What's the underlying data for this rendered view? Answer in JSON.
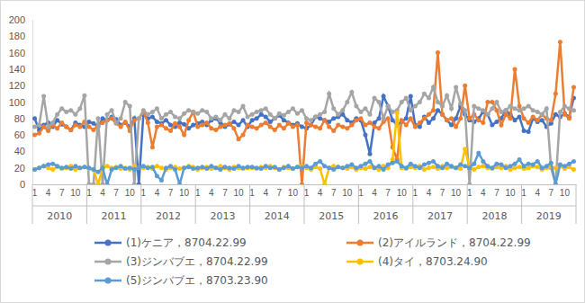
{
  "chart_data": {
    "type": "line",
    "marker": "circle",
    "grid": false,
    "legend": "bottom",
    "ylim": [
      0,
      200
    ],
    "yticks": [
      0,
      20,
      40,
      60,
      80,
      100,
      120,
      140,
      160,
      180,
      200
    ],
    "categories": [
      "1",
      null,
      null,
      "4",
      null,
      null,
      "7",
      null,
      null,
      "10",
      null,
      null,
      "1",
      null,
      null,
      "4",
      null,
      null,
      "7",
      null,
      null,
      "10",
      null,
      null,
      "1",
      null,
      null,
      "4",
      null,
      null,
      "7",
      null,
      null,
      "10",
      null,
      null,
      "1",
      null,
      null,
      "4",
      null,
      null,
      "7",
      null,
      null,
      "10",
      null,
      null,
      "1",
      null,
      null,
      "4",
      null,
      null,
      "7",
      null,
      null,
      "10",
      null,
      null,
      "1",
      null,
      null,
      "4",
      null,
      null,
      "7",
      null,
      null,
      "10",
      null,
      null,
      "1",
      null,
      null,
      "4",
      null,
      null,
      "7",
      null,
      null,
      "10",
      null,
      null,
      "1",
      null,
      null,
      "4",
      null,
      null,
      "7",
      null,
      null,
      "10",
      null,
      null,
      "1",
      null,
      null,
      "4",
      null,
      null,
      "7",
      null,
      null,
      "10",
      null,
      null,
      "1",
      null,
      null,
      "4",
      null,
      null,
      "7",
      null,
      null,
      "10",
      null,
      null
    ],
    "category_groups": [
      "2010",
      "2011",
      "2012",
      "2013",
      "2014",
      "2015",
      "2016",
      "2017",
      "2018",
      "2019"
    ],
    "series": [
      {
        "name": "(1)ケニア，8704.22.99",
        "color": "#4472c4",
        "values": [
          80,
          66,
          72,
          75,
          70,
          78,
          73,
          70,
          66,
          75,
          72,
          70,
          76,
          74,
          70,
          80,
          78,
          82,
          79,
          72,
          75,
          70,
          80,
          0,
          85,
          80,
          82,
          76,
          74,
          78,
          72,
          70,
          75,
          73,
          68,
          72,
          74,
          76,
          72,
          78,
          80,
          75,
          70,
          73,
          76,
          72,
          78,
          70,
          78,
          80,
          85,
          82,
          76,
          80,
          84,
          78,
          75,
          72,
          74,
          70,
          68,
          72,
          82,
          80,
          78,
          76,
          80,
          82,
          85,
          78,
          75,
          80,
          78,
          60,
          37,
          75,
          80,
          107,
          95,
          78,
          72,
          76,
          80,
          107,
          72,
          70,
          82,
          75,
          80,
          90,
          85,
          78,
          72,
          80,
          95,
          85,
          78,
          76,
          80,
          88,
          85,
          72,
          76,
          80,
          90,
          85,
          78,
          82,
          65,
          64,
          80,
          76,
          78,
          70,
          74,
          85,
          82,
          86,
          82,
          105
        ]
      },
      {
        "name": "(2)アイルランド，8704.22.99",
        "color": "#ed7d31",
        "values": [
          60,
          62,
          70,
          65,
          72,
          68,
          75,
          70,
          66,
          72,
          70,
          76,
          70,
          66,
          72,
          75,
          78,
          80,
          74,
          70,
          76,
          65,
          78,
          80,
          88,
          75,
          45,
          70,
          72,
          68,
          65,
          74,
          70,
          60,
          78,
          88,
          70,
          72,
          75,
          68,
          66,
          70,
          72,
          74,
          68,
          55,
          60,
          72,
          70,
          68,
          72,
          75,
          70,
          66,
          72,
          68,
          74,
          70,
          72,
          0,
          75,
          72,
          70,
          68,
          78,
          70,
          65,
          72,
          70,
          68,
          72,
          78,
          80,
          72,
          75,
          70,
          68,
          76,
          80,
          45,
          30,
          78,
          72,
          80,
          70,
          75,
          80,
          85,
          90,
          160,
          85,
          78,
          80,
          70,
          80,
          120,
          80,
          85,
          78,
          75,
          100,
          100,
          90,
          72,
          85,
          80,
          140,
          95,
          80,
          75,
          82,
          78,
          85,
          80,
          78,
          110,
          173,
          85,
          80,
          118
        ]
      },
      {
        "name": "(3)ジンバブエ，8704.22.99",
        "color": "#a5a5a5",
        "values": [
          70,
          72,
          107,
          70,
          75,
          85,
          92,
          88,
          90,
          85,
          92,
          108,
          0,
          0,
          80,
          0,
          85,
          90,
          75,
          80,
          100,
          95,
          0,
          80,
          90,
          85,
          88,
          92,
          80,
          85,
          88,
          82,
          80,
          86,
          90,
          88,
          86,
          90,
          88,
          80,
          82,
          78,
          85,
          80,
          90,
          88,
          95,
          82,
          85,
          88,
          90,
          92,
          85,
          80,
          86,
          84,
          88,
          92,
          86,
          90,
          80,
          78,
          82,
          85,
          88,
          110,
          92,
          85,
          90,
          100,
          112,
          95,
          88,
          92,
          85,
          105,
          100,
          80,
          95,
          88,
          90,
          100,
          105,
          90,
          95,
          100,
          110,
          105,
          118,
          100,
          95,
          108,
          92,
          118,
          98,
          90,
          0,
          95,
          92,
          90,
          85,
          92,
          100,
          88,
          90,
          95,
          92,
          90,
          92,
          95,
          90,
          88,
          85,
          92,
          20,
          0,
          88,
          95,
          92,
          90
        ]
      },
      {
        "name": "(4)タイ，8703.24.90",
        "color": "#ffc000",
        "values": [
          18,
          20,
          22,
          20,
          18,
          21,
          19,
          20,
          22,
          18,
          20,
          21,
          19,
          18,
          0,
          20,
          22,
          20,
          21,
          19,
          20,
          18,
          22,
          20,
          20,
          21,
          19,
          22,
          20,
          18,
          20,
          21,
          19,
          20,
          22,
          21,
          18,
          20,
          21,
          19,
          20,
          22,
          20,
          18,
          21,
          20,
          19,
          20,
          20,
          19,
          21,
          20,
          22,
          20,
          18,
          21,
          20,
          19,
          21,
          22,
          20,
          18,
          21,
          19,
          0,
          20,
          22,
          21,
          20,
          19,
          21,
          18,
          20,
          19,
          21,
          20,
          18,
          22,
          20,
          30,
          87,
          20,
          19,
          21,
          20,
          22,
          18,
          20,
          21,
          19,
          22,
          20,
          21,
          20,
          19,
          43,
          20,
          18,
          21,
          22,
          20,
          19,
          21,
          20,
          22,
          18,
          20,
          21,
          19,
          20,
          22,
          21,
          18,
          20,
          21,
          20,
          22,
          19,
          21,
          18
        ]
      },
      {
        "name": "(5)ジンバブエ，8703.23.90",
        "color": "#5b9bd5",
        "values": [
          18,
          20,
          22,
          24,
          25,
          22,
          20,
          21,
          19,
          22,
          20,
          21,
          20,
          18,
          15,
          20,
          0,
          18,
          20,
          22,
          19,
          20,
          18,
          20,
          22,
          20,
          21,
          10,
          5,
          20,
          22,
          18,
          0,
          20,
          21,
          19,
          20,
          21,
          19,
          22,
          20,
          18,
          21,
          20,
          19,
          22,
          20,
          21,
          21,
          20,
          19,
          22,
          20,
          21,
          18,
          20,
          22,
          19,
          21,
          20,
          22,
          20,
          25,
          28,
          22,
          20,
          18,
          21,
          20,
          22,
          24,
          20,
          22,
          25,
          28,
          20,
          22,
          18,
          24,
          26,
          28,
          22,
          20,
          25,
          22,
          20,
          24,
          26,
          28,
          22,
          20,
          25,
          22,
          20,
          24,
          22,
          20,
          25,
          38,
          28,
          22,
          20,
          25,
          24,
          20,
          22,
          25,
          30,
          22,
          25,
          24,
          28,
          20,
          22,
          26,
          0,
          24,
          22,
          25,
          28
        ]
      }
    ]
  }
}
